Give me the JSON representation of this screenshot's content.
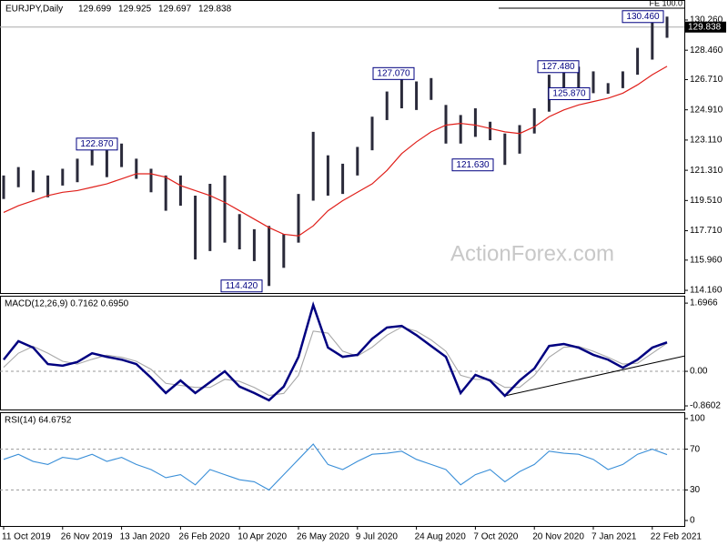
{
  "header": {
    "symbol": "EURJPY,Daily",
    "ohlc": [
      129.699,
      129.925,
      129.697,
      129.838
    ]
  },
  "watermark": "ActionForex.com",
  "chart_data": [
    {
      "type": "ohlc",
      "categories": [
        "11 Oct 2019",
        null,
        null,
        null,
        "26 Nov 2019",
        null,
        null,
        null,
        "13 Jan 2020",
        null,
        null,
        null,
        "26 Feb 2020",
        null,
        null,
        null,
        "10 Apr 2020",
        null,
        null,
        null,
        "26 May 2020",
        null,
        null,
        null,
        "9 Jul 2020",
        null,
        null,
        null,
        "24 Aug 2020",
        null,
        null,
        null,
        "7 Oct 2020",
        null,
        null,
        null,
        "20 Nov 2020",
        null,
        null,
        null,
        "7 Jan 2021",
        null,
        null,
        null,
        "22 Feb 2021",
        null
      ],
      "high": [
        121.0,
        121.5,
        121.3,
        121.0,
        121.4,
        122.0,
        122.87,
        122.5,
        122.9,
        122.0,
        121.4,
        121.0,
        121.0,
        119.8,
        120.5,
        121.0,
        118.7,
        117.8,
        118.0,
        117.5,
        119.9,
        123.6,
        122.2,
        121.7,
        122.7,
        124.5,
        126.0,
        127.07,
        126.6,
        126.8,
        125.2,
        124.6,
        125.0,
        124.2,
        123.5,
        124.0,
        125.0,
        127.0,
        127.2,
        127.48,
        127.2,
        126.5,
        127.2,
        128.6,
        130.2,
        130.46
      ],
      "low": [
        119.6,
        120.3,
        120.0,
        119.7,
        120.4,
        120.6,
        121.6,
        120.9,
        121.5,
        120.8,
        120.0,
        118.9,
        119.2,
        116.0,
        116.5,
        117.0,
        116.6,
        115.9,
        114.42,
        115.5,
        117.0,
        119.5,
        119.8,
        119.9,
        121.0,
        122.5,
        124.3,
        125.0,
        124.9,
        125.5,
        122.9,
        122.9,
        123.3,
        123.1,
        121.63,
        122.3,
        123.5,
        124.8,
        126.0,
        126.2,
        125.9,
        125.87,
        126.2,
        127.0,
        127.9,
        129.2
      ],
      "color": "#2a2a3a",
      "overlays": [
        {
          "color": "#e0201b",
          "values": [
            118.8,
            119.2,
            119.5,
            119.8,
            120.0,
            120.1,
            120.3,
            120.5,
            120.8,
            121.1,
            121.1,
            120.9,
            120.4,
            120.1,
            119.8,
            119.4,
            118.9,
            118.4,
            117.9,
            117.5,
            117.4,
            118.0,
            118.9,
            119.5,
            120.0,
            120.5,
            121.3,
            122.3,
            123.0,
            123.6,
            124.0,
            124.1,
            124.0,
            123.8,
            123.6,
            123.5,
            123.9,
            124.5,
            124.9,
            125.2,
            125.4,
            125.6,
            125.9,
            126.4,
            127.0,
            127.5
          ]
        }
      ],
      "ylim": [
        114.0,
        131.45
      ],
      "yticks": [
        {
          "value": 114.16,
          "label": "114.160"
        },
        {
          "value": 115.96,
          "label": "115.960"
        },
        {
          "value": 117.71,
          "label": "117.710"
        },
        {
          "value": 119.51,
          "label": "119.510"
        },
        {
          "value": 121.31,
          "label": "121.310"
        },
        {
          "value": 123.11,
          "label": "123.110"
        },
        {
          "value": 124.91,
          "label": "124.910"
        },
        {
          "value": 126.71,
          "label": "126.710"
        },
        {
          "value": 128.46,
          "label": "128.460"
        },
        {
          "value": 130.26,
          "label": "130.260"
        }
      ],
      "last_price": 129.838,
      "fe_label": "FE 100.0",
      "fe_level": 130.96,
      "annotations": [
        {
          "value": 122.87,
          "label": "122.870"
        },
        {
          "value": 114.42,
          "label": "114.420"
        },
        {
          "value": 127.07,
          "label": "127.070"
        },
        {
          "value": 121.63,
          "label": "121.630"
        },
        {
          "value": 127.48,
          "label": "127.480"
        },
        {
          "value": 125.87,
          "label": "125.870"
        },
        {
          "value": 130.46,
          "label": "130.460"
        }
      ]
    },
    {
      "type": "line",
      "title": "MACD(12,26,9) 0.7162 0.6950",
      "series": [
        {
          "color": "#000080",
          "values": [
            0.29,
            0.75,
            0.59,
            0.18,
            0.14,
            0.23,
            0.45,
            0.36,
            0.29,
            0.18,
            -0.16,
            -0.54,
            -0.23,
            -0.54,
            -0.27,
            0.0,
            -0.38,
            -0.54,
            -0.72,
            -0.38,
            0.36,
            1.65,
            0.59,
            0.36,
            0.41,
            0.81,
            1.09,
            1.13,
            0.9,
            0.63,
            0.36,
            -0.54,
            -0.09,
            -0.23,
            -0.61,
            -0.23,
            0.07,
            0.63,
            0.68,
            0.59,
            0.41,
            0.29,
            0.09,
            0.29,
            0.59,
            0.72
          ]
        },
        {
          "color": "#a8a8a8",
          "values": [
            0.1,
            0.45,
            0.62,
            0.45,
            0.25,
            0.18,
            0.3,
            0.4,
            0.35,
            0.25,
            0.05,
            -0.3,
            -0.35,
            -0.4,
            -0.4,
            -0.2,
            -0.25,
            -0.4,
            -0.6,
            -0.55,
            -0.1,
            1.0,
            0.95,
            0.5,
            0.38,
            0.6,
            0.9,
            1.1,
            1.0,
            0.78,
            0.5,
            -0.1,
            -0.2,
            -0.2,
            -0.4,
            -0.4,
            -0.1,
            0.35,
            0.6,
            0.62,
            0.5,
            0.35,
            0.18,
            0.2,
            0.45,
            0.7
          ]
        }
      ],
      "ylim": [
        -0.95,
        1.88
      ],
      "yticks": [
        1.6966,
        {
          "value": 0,
          "label": "0.00"
        },
        -0.8602
      ],
      "levels": [
        0
      ],
      "trendline": {
        "from": -0.61,
        "to": 0.38
      }
    },
    {
      "type": "line",
      "title": "RSI(14) 64.6752",
      "series": [
        {
          "color": "#3a8fd8",
          "values": [
            60,
            65,
            58,
            55,
            62,
            60,
            65,
            58,
            62,
            55,
            50,
            42,
            45,
            35,
            50,
            45,
            40,
            38,
            30,
            45,
            60,
            75,
            55,
            50,
            58,
            65,
            66,
            68,
            60,
            55,
            50,
            35,
            45,
            50,
            38,
            48,
            55,
            68,
            66,
            65,
            60,
            50,
            55,
            65,
            70,
            64.68
          ]
        }
      ],
      "ylim": [
        -5.4,
        106.3
      ],
      "yticks": [
        100,
        70,
        30,
        0
      ],
      "levels": [
        70,
        30
      ]
    }
  ]
}
